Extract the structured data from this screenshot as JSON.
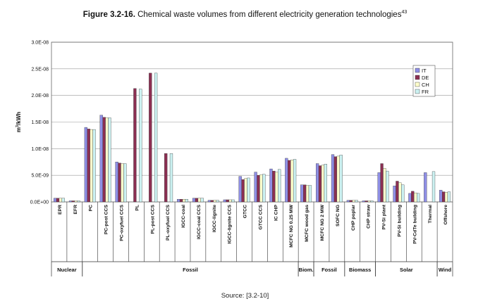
{
  "figure": {
    "label": "Figure 3.2-16.",
    "caption": "Chemical waste volumes from different electricity generation technologies",
    "footnote": "43",
    "source": "Source: [3.2-10]"
  },
  "colors": {
    "IT": "#8f8fe6",
    "DE": "#8b2f52",
    "CH": "#ffffcc",
    "FR": "#ccf2f2"
  },
  "chart_data": {
    "type": "bar",
    "ylabel": "m3/kWh",
    "ylim": [
      0,
      3e-08
    ],
    "yticks": [
      0,
      5e-09,
      1e-08,
      1.5e-08,
      2e-08,
      2.5e-08,
      3e-08
    ],
    "ytick_labels": [
      "0.0E+00",
      "5.0E-09",
      "1.0E-08",
      "1.5E-08",
      "2.0E-08",
      "2.5E-08",
      "3.0E-08"
    ],
    "grid": true,
    "legend_position": "top-right",
    "categories": [
      "EPR",
      "EFR",
      "PC",
      "PC-post CCS",
      "PC-oxyfuel CCS",
      "PL",
      "PL-post CCS",
      "PL-oxyfuel CCS",
      "IGCC-coal",
      "IGCC-coal CCS",
      "IGCC-lignite",
      "IGCC-lignite CCS",
      "GTCC",
      "GTCC CCS",
      "IC CHP",
      "MCFC NG 0.25 MW",
      "MCFC wood gas",
      "MCFC NG 2 MW",
      "SOFC NG",
      "CHP poplar",
      "CHP straw",
      "PV-Si plant",
      "PV-Si building",
      "PV-CdTe building",
      "Thermal",
      "Offshore"
    ],
    "series": [
      {
        "name": "IT",
        "values": [
          7e-10,
          2e-10,
          1.4e-08,
          1.63e-08,
          7.5e-09,
          null,
          null,
          null,
          5e-10,
          7e-10,
          3e-10,
          4e-10,
          4.8e-09,
          5.6e-09,
          6.2e-09,
          8.2e-09,
          3.2e-09,
          7.2e-09,
          8.9e-09,
          3e-10,
          2e-10,
          5.5e-09,
          3e-09,
          1.6e-09,
          5.5e-09,
          2.2e-09
        ]
      },
      {
        "name": "DE",
        "values": [
          7e-10,
          2e-10,
          1.37e-08,
          1.59e-08,
          7.3e-09,
          2.13e-08,
          2.42e-08,
          9.1e-09,
          5e-10,
          7e-10,
          3e-10,
          4e-10,
          4.2e-09,
          5e-09,
          5.8e-09,
          7.8e-09,
          3.2e-09,
          6.8e-09,
          8.5e-09,
          3e-10,
          2e-10,
          7.2e-09,
          3.9e-09,
          2e-09,
          null,
          1.9e-09
        ]
      },
      {
        "name": "CH",
        "values": [
          7e-10,
          2e-10,
          1.36e-08,
          1.58e-08,
          7.2e-09,
          null,
          null,
          null,
          5e-10,
          7e-10,
          3e-10,
          4e-10,
          4.4e-09,
          5.1e-09,
          5.6e-09,
          7.9e-09,
          3.1e-09,
          6.9e-09,
          8.6e-09,
          3e-10,
          2e-10,
          6.3e-09,
          3.6e-09,
          1.7e-09,
          null,
          1.8e-09
        ]
      },
      {
        "name": "FR",
        "values": [
          7e-10,
          2e-10,
          1.36e-08,
          1.58e-08,
          7.2e-09,
          2.12e-08,
          2.42e-08,
          9.1e-09,
          5e-10,
          7e-10,
          3e-10,
          4e-10,
          4.5e-09,
          5.2e-09,
          6.1e-09,
          8e-09,
          3.1e-09,
          7.1e-09,
          8.8e-09,
          3e-10,
          2e-10,
          5.8e-09,
          3.2e-09,
          1.6e-09,
          5.7e-09,
          1.9e-09
        ]
      }
    ],
    "groups": [
      {
        "name": "Nuclear",
        "from": 0,
        "to": 1
      },
      {
        "name": "Fossil",
        "from": 2,
        "to": 15
      },
      {
        "name": "Biom.",
        "from": 16,
        "to": 16
      },
      {
        "name": "Fossil",
        "from": 17,
        "to": 18
      },
      {
        "name": "Biomass",
        "from": 19,
        "to": 20
      },
      {
        "name": "Solar",
        "from": 21,
        "to": 24
      },
      {
        "name": "Wind",
        "from": 25,
        "to": 25
      }
    ]
  }
}
